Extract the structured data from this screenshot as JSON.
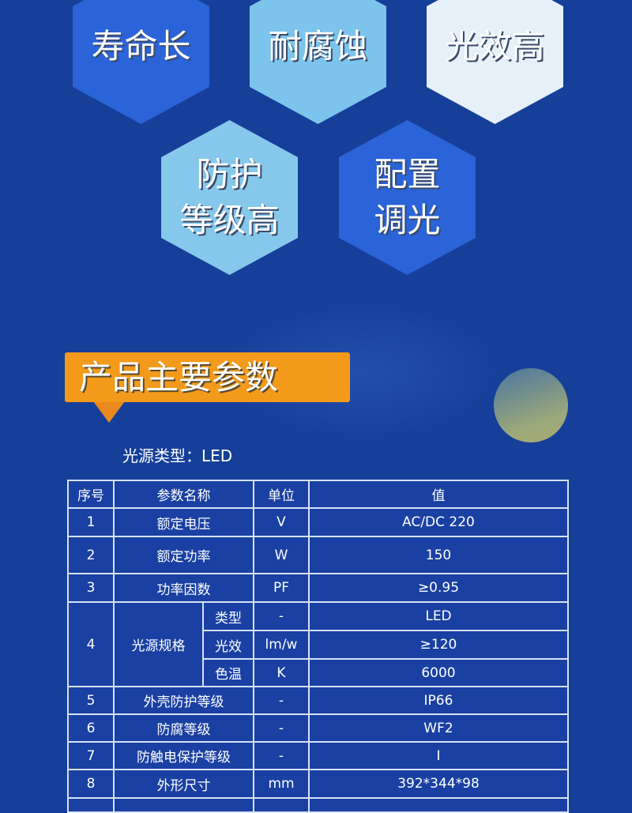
{
  "features": [
    {
      "lines": [
        "寿命长"
      ],
      "color": "#2b63d8"
    },
    {
      "lines": [
        "耐腐蚀"
      ],
      "color": "#7cc4ec"
    },
    {
      "lines": [
        "光效高"
      ],
      "color": "#e6f0f8"
    },
    {
      "lines": [
        "防护",
        "等级高"
      ],
      "color": "#86c8ec"
    },
    {
      "lines": [
        "配置",
        "调光"
      ],
      "color": "#2b63d8"
    }
  ],
  "section_title": "产品主要参数",
  "light_source_type": "光源类型：LED",
  "table": {
    "headers": [
      "序号",
      "参数名称",
      "单位",
      "值"
    ],
    "rows": [
      {
        "no": "1",
        "name": "额定电压",
        "unit": "V",
        "value": "AC/DC 220"
      },
      {
        "no": "2",
        "name": "额定功率",
        "unit": "W",
        "value": "150"
      },
      {
        "no": "3",
        "name": "功率因数",
        "unit": "PF",
        "value": "≥0.95"
      },
      {
        "no": "4",
        "name": "光源规格",
        "sub": [
          {
            "name": "类型",
            "unit": "-",
            "value": "LED"
          },
          {
            "name": "光效",
            "unit": "lm/w",
            "value": "≥120"
          },
          {
            "name": "色温",
            "unit": "K",
            "value": "6000"
          }
        ]
      },
      {
        "no": "5",
        "name": "外壳防护等级",
        "unit": "-",
        "value": "IP66"
      },
      {
        "no": "6",
        "name": "防腐等级",
        "unit": "-",
        "value": "WF2"
      },
      {
        "no": "7",
        "name": "防触电保护等级",
        "unit": "-",
        "value": "I"
      },
      {
        "no": "8",
        "name": "外形尺寸",
        "unit": "mm",
        "value": "392*344*98"
      }
    ]
  }
}
